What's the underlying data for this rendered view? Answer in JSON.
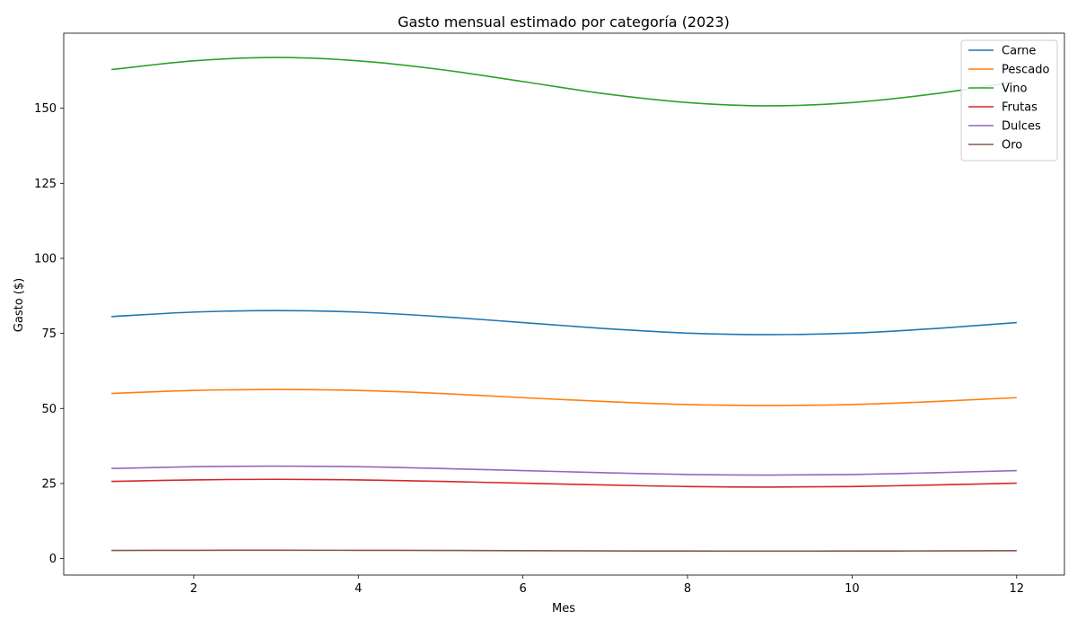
{
  "chart_data": {
    "type": "line",
    "title": "Gasto mensual estimado por categoría (2023)",
    "xlabel": "Mes",
    "ylabel": "Gasto ($)",
    "x": [
      1,
      2,
      3,
      4,
      5,
      6,
      7,
      8,
      9,
      10,
      11,
      12
    ],
    "xlim": [
      0.42,
      12.58
    ],
    "ylim": [
      -5.5,
      175
    ],
    "xticks": [
      2,
      4,
      6,
      8,
      10,
      12
    ],
    "yticks": [
      0,
      25,
      50,
      75,
      100,
      125,
      150
    ],
    "grid": false,
    "legend_position": "top-right",
    "series": [
      {
        "name": "Carne",
        "color": "#1f77b4",
        "values": [
          80.6,
          82.1,
          82.6,
          82.1,
          80.6,
          78.6,
          76.6,
          75.1,
          74.6,
          75.1,
          76.6,
          78.6
        ]
      },
      {
        "name": "Pescado",
        "color": "#ff7f0e",
        "values": [
          55.0,
          56.0,
          56.3,
          56.0,
          55.0,
          53.6,
          52.3,
          51.3,
          51.0,
          51.3,
          52.3,
          53.6
        ]
      },
      {
        "name": "Vino",
        "color": "#2ca02c",
        "values": [
          162.9,
          165.8,
          166.9,
          165.8,
          162.9,
          158.9,
          154.8,
          151.9,
          150.8,
          151.9,
          154.8,
          158.9
        ]
      },
      {
        "name": "Frutas",
        "color": "#d62728",
        "values": [
          25.7,
          26.2,
          26.4,
          26.2,
          25.7,
          25.1,
          24.5,
          24.0,
          23.8,
          24.0,
          24.5,
          25.1
        ]
      },
      {
        "name": "Dulces",
        "color": "#9467bd",
        "values": [
          30.0,
          30.6,
          30.8,
          30.6,
          30.0,
          29.3,
          28.6,
          28.0,
          27.8,
          28.0,
          28.6,
          29.3
        ]
      },
      {
        "name": "Oro",
        "color": "#8c564b",
        "values": [
          2.7,
          2.75,
          2.77,
          2.75,
          2.7,
          2.63,
          2.55,
          2.5,
          2.48,
          2.5,
          2.55,
          2.63
        ]
      }
    ]
  }
}
